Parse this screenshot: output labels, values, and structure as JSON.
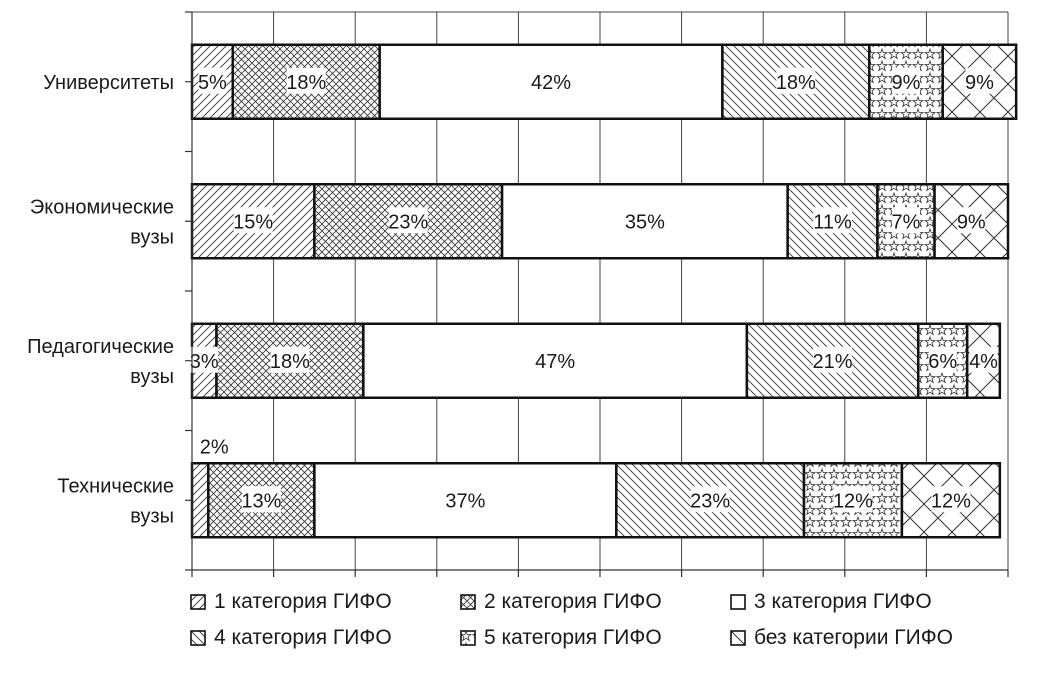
{
  "chart_data": {
    "type": "bar",
    "orientation": "horizontal",
    "stacked": true,
    "categories": [
      "Университеты",
      "Экономические вузы",
      "Педагогические вузы",
      "Технические вузы"
    ],
    "category_lines": [
      [
        "Университеты"
      ],
      [
        "Экономические",
        "вузы"
      ],
      [
        "Педагогические",
        "вузы"
      ],
      [
        "Технические",
        "вузы"
      ]
    ],
    "series": [
      {
        "name": "1 категория ГИФО",
        "values": [
          5,
          15,
          3,
          2
        ],
        "labels": [
          "5%",
          "15%",
          "3%",
          "2%"
        ],
        "pattern": "hatch-diag"
      },
      {
        "name": "2 категория ГИФО",
        "values": [
          18,
          23,
          18,
          13
        ],
        "labels": [
          "18%",
          "23%",
          "18%",
          "13%"
        ],
        "pattern": "crosshatch"
      },
      {
        "name": "3 категория ГИФО",
        "values": [
          42,
          35,
          47,
          37
        ],
        "labels": [
          "42%",
          "35%",
          "47%",
          "37%"
        ],
        "pattern": "none"
      },
      {
        "name": "4 категория ГИФО",
        "values": [
          18,
          11,
          21,
          23
        ],
        "labels": [
          "18%",
          "11%",
          "21%",
          "23%"
        ],
        "pattern": "hatch-back"
      },
      {
        "name": "5 категория ГИФО",
        "values": [
          9,
          7,
          6,
          12
        ],
        "labels": [
          "9%",
          "7%",
          "6%",
          "12%"
        ],
        "pattern": "stars"
      },
      {
        "name": "без категории ГИФО",
        "values": [
          9,
          9,
          4,
          12
        ],
        "labels": [
          "9%",
          "9%",
          "4%",
          "12%"
        ],
        "pattern": "big-x"
      }
    ],
    "x_ticks": [
      "0%",
      "10%",
      "20%",
      "30%",
      "40%",
      "50%",
      "60%",
      "70%",
      "80%",
      "90%",
      "100%"
    ],
    "xlim": [
      0,
      100
    ],
    "grid": true,
    "legend_position": "bottom",
    "title": "",
    "xlabel": "",
    "ylabel": ""
  }
}
